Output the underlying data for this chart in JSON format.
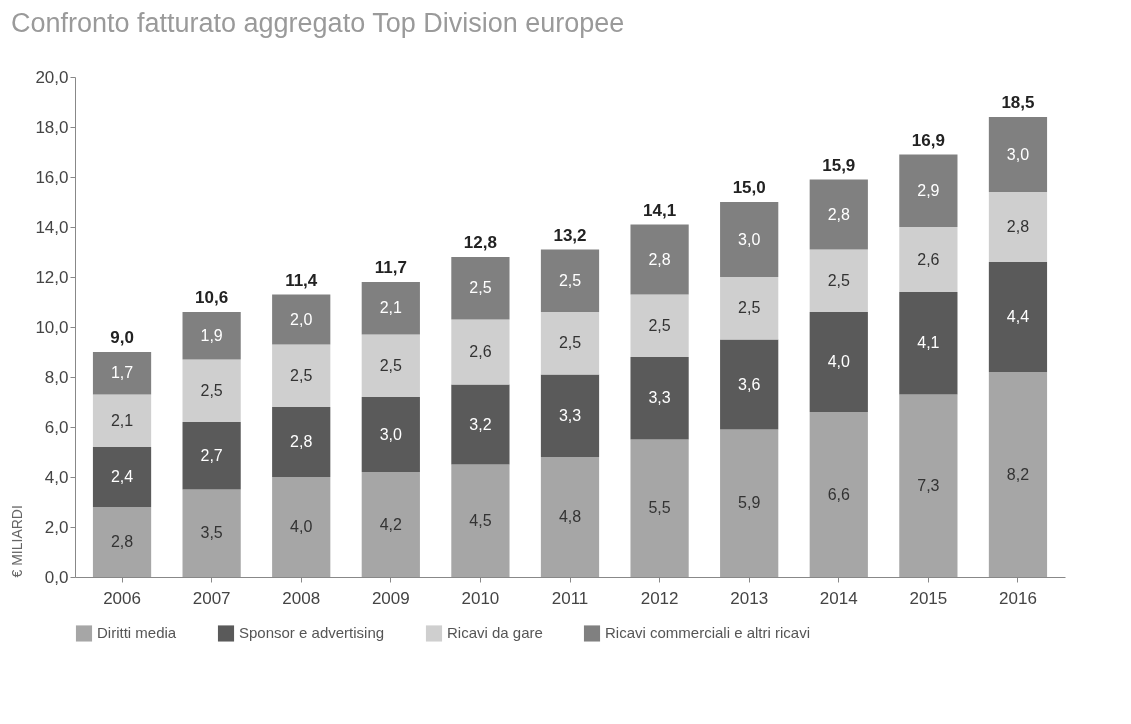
{
  "chart_data": {
    "type": "bar",
    "stacked": true,
    "title": "Confronto fatturato aggregato Top Division europee",
    "ylabel": "€ MILIARDI",
    "categories": [
      "2006",
      "2007",
      "2008",
      "2009",
      "2010",
      "2011",
      "2012",
      "2013",
      "2014",
      "2015",
      "2016"
    ],
    "series": [
      {
        "name": "Diritti media",
        "color": "#a6a6a6",
        "values": [
          2.8,
          3.5,
          4.0,
          4.2,
          4.5,
          4.8,
          5.5,
          5.9,
          6.6,
          7.3,
          8.2
        ],
        "value_labels": [
          "2,8",
          "3,5",
          "4,0",
          "4,2",
          "4,5",
          "4,8",
          "5,5",
          "5,9",
          "6,6",
          "7,3",
          "8,2"
        ]
      },
      {
        "name": "Sponsor e advertising",
        "color": "#5a5a5a",
        "values": [
          2.4,
          2.7,
          2.8,
          3.0,
          3.2,
          3.3,
          3.3,
          3.6,
          4.0,
          4.1,
          4.4
        ],
        "value_labels": [
          "2,4",
          "2,7",
          "2,8",
          "3,0",
          "3,2",
          "3,3",
          "3,3",
          "3,6",
          "4,0",
          "4,1",
          "4,4"
        ]
      },
      {
        "name": "Ricavi da gare",
        "color": "#cfcfcf",
        "values": [
          2.1,
          2.5,
          2.5,
          2.5,
          2.6,
          2.5,
          2.5,
          2.5,
          2.5,
          2.6,
          2.8
        ],
        "value_labels": [
          "2,1",
          "2,5",
          "2,5",
          "2,5",
          "2,6",
          "2,5",
          "2,5",
          "2,5",
          "2,5",
          "2,6",
          "2,8"
        ]
      },
      {
        "name": "Ricavi commerciali e altri ricavi",
        "color": "#808080",
        "values": [
          1.7,
          1.9,
          2.0,
          2.1,
          2.5,
          2.5,
          2.8,
          3.0,
          2.8,
          2.9,
          3.0
        ],
        "value_labels": [
          "1,7",
          "1,9",
          "2,0",
          "2,1",
          "2,5",
          "2,5",
          "2,8",
          "3,0",
          "2,8",
          "2,9",
          "3,0"
        ]
      }
    ],
    "totals": [
      "9,0",
      "10,6",
      "11,4",
      "11,7",
      "12,8",
      "13,2",
      "14,1",
      "15,0",
      "15,9",
      "16,9",
      "18,5"
    ],
    "ylim": [
      0,
      20
    ],
    "yticks": [
      {
        "value": 0,
        "label": "0,0"
      },
      {
        "value": 2,
        "label": "2,0"
      },
      {
        "value": 4,
        "label": "4,0"
      },
      {
        "value": 6,
        "label": "6,0"
      },
      {
        "value": 8,
        "label": "8,0"
      },
      {
        "value": 10,
        "label": "10,0"
      },
      {
        "value": 12,
        "label": "12,0"
      },
      {
        "value": 14,
        "label": "14,0"
      },
      {
        "value": 16,
        "label": "16,0"
      },
      {
        "value": 18,
        "label": "18,0"
      },
      {
        "value": 20,
        "label": "20,0"
      }
    ],
    "grid": false,
    "legend": "bottom"
  }
}
